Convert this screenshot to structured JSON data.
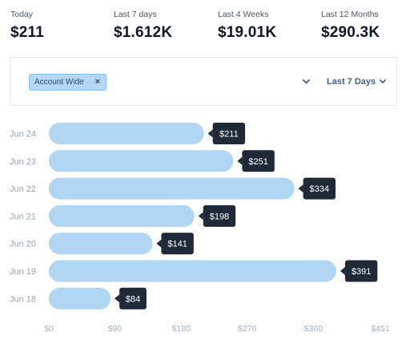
{
  "stats": [
    {
      "label": "Today",
      "value": "$211"
    },
    {
      "label": "Last 7 days",
      "value": "$1.612K"
    },
    {
      "label": "Last 4 Weeks",
      "value": "$19.01K"
    },
    {
      "label": "Last 12 Months",
      "value": "$290.3K"
    }
  ],
  "filter": {
    "tag_label": "Account Wide",
    "tag_remove": "×",
    "scope_icon": "chevron-down-icon",
    "range_label": "Last 7 Days",
    "range_icon": "chevron-down-icon",
    "accent": "#3f5f86"
  },
  "chart_data": {
    "type": "bar",
    "orientation": "horizontal",
    "categories": [
      "Jun 24",
      "Jun 23",
      "Jun 22",
      "Jun 21",
      "Jun 20",
      "Jun 19",
      "Jun 18"
    ],
    "values": [
      211,
      251,
      334,
      198,
      141,
      391,
      84
    ],
    "value_labels": [
      "$211",
      "$251",
      "$334",
      "$198",
      "$141",
      "$391",
      "$84"
    ],
    "x_ticks": [
      0,
      90,
      180,
      270,
      360,
      451
    ],
    "x_tick_labels": [
      "$0",
      "$90",
      "$180",
      "$270",
      "$360",
      "$451"
    ],
    "xlim": [
      0,
      451
    ],
    "title": "",
    "xlabel": "",
    "ylabel": "",
    "grid": false,
    "legend": "none",
    "bar_color": "#b0d6f4",
    "label_color": "#1f2937"
  }
}
